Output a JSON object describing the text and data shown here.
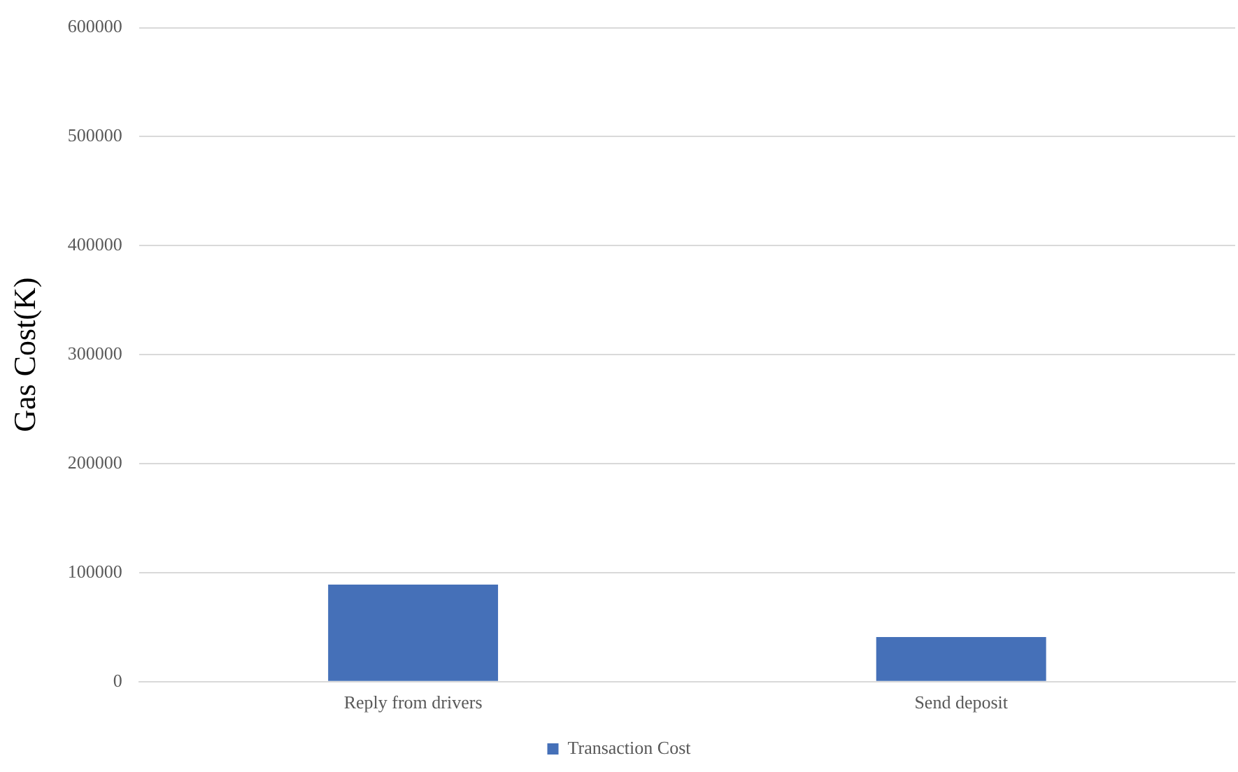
{
  "chart_data": {
    "type": "bar",
    "ylabel": "Gas Cost(K)",
    "categories": [
      "Reply from drivers",
      "Send deposit"
    ],
    "series": [
      {
        "name": "Transaction Cost",
        "color": "#4570b8",
        "values": [
          89000,
          41000
        ]
      }
    ],
    "ylim": [
      0,
      600000
    ],
    "yticks": [
      0,
      100000,
      200000,
      300000,
      400000,
      500000,
      600000
    ],
    "grid": "y",
    "legend": "bottom"
  }
}
